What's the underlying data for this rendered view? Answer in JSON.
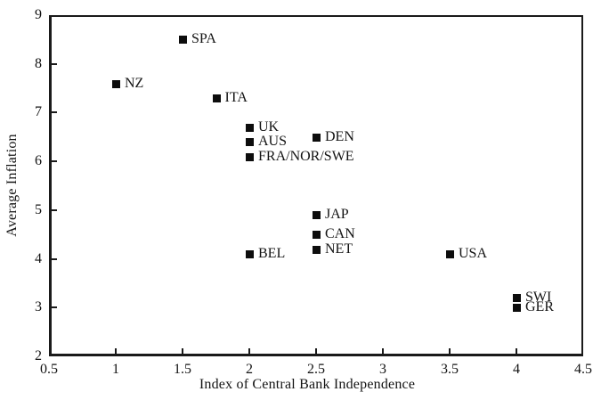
{
  "chart_data": {
    "type": "scatter",
    "xlabel": "Index of Central Bank Independence",
    "ylabel": "Average Inflation",
    "xlim": [
      0.5,
      4.5
    ],
    "ylim": [
      2,
      9
    ],
    "x_ticks": [
      0.5,
      1,
      1.5,
      2,
      2.5,
      3,
      3.5,
      4,
      4.5
    ],
    "y_ticks": [
      2,
      3,
      4,
      5,
      6,
      7,
      8,
      9
    ],
    "grid": false,
    "legend": false,
    "marker": "filled-square",
    "marker_color": "#0d0d0d",
    "axis_color": "#1a1a1a",
    "background_color": "#ffffff",
    "points": [
      {
        "label": "SPA",
        "x": 1.5,
        "y": 8.5
      },
      {
        "label": "NZ",
        "x": 1,
        "y": 7.6
      },
      {
        "label": "ITA",
        "x": 1.75,
        "y": 7.3
      },
      {
        "label": "UK",
        "x": 2,
        "y": 6.7
      },
      {
        "label": "DEN",
        "x": 2.5,
        "y": 6.5
      },
      {
        "label": "AUS",
        "x": 2,
        "y": 6.4
      },
      {
        "label": "FRA/NOR/SWE",
        "x": 2,
        "y": 6.1
      },
      {
        "label": "JAP",
        "x": 2.5,
        "y": 4.9
      },
      {
        "label": "CAN",
        "x": 2.5,
        "y": 4.5
      },
      {
        "label": "NET",
        "x": 2.5,
        "y": 4.2
      },
      {
        "label": "BEL",
        "x": 2,
        "y": 4.1
      },
      {
        "label": "USA",
        "x": 3.5,
        "y": 4.1
      },
      {
        "label": "SWI",
        "x": 4,
        "y": 3.2
      },
      {
        "label": "GER",
        "x": 4,
        "y": 3.0
      }
    ]
  }
}
